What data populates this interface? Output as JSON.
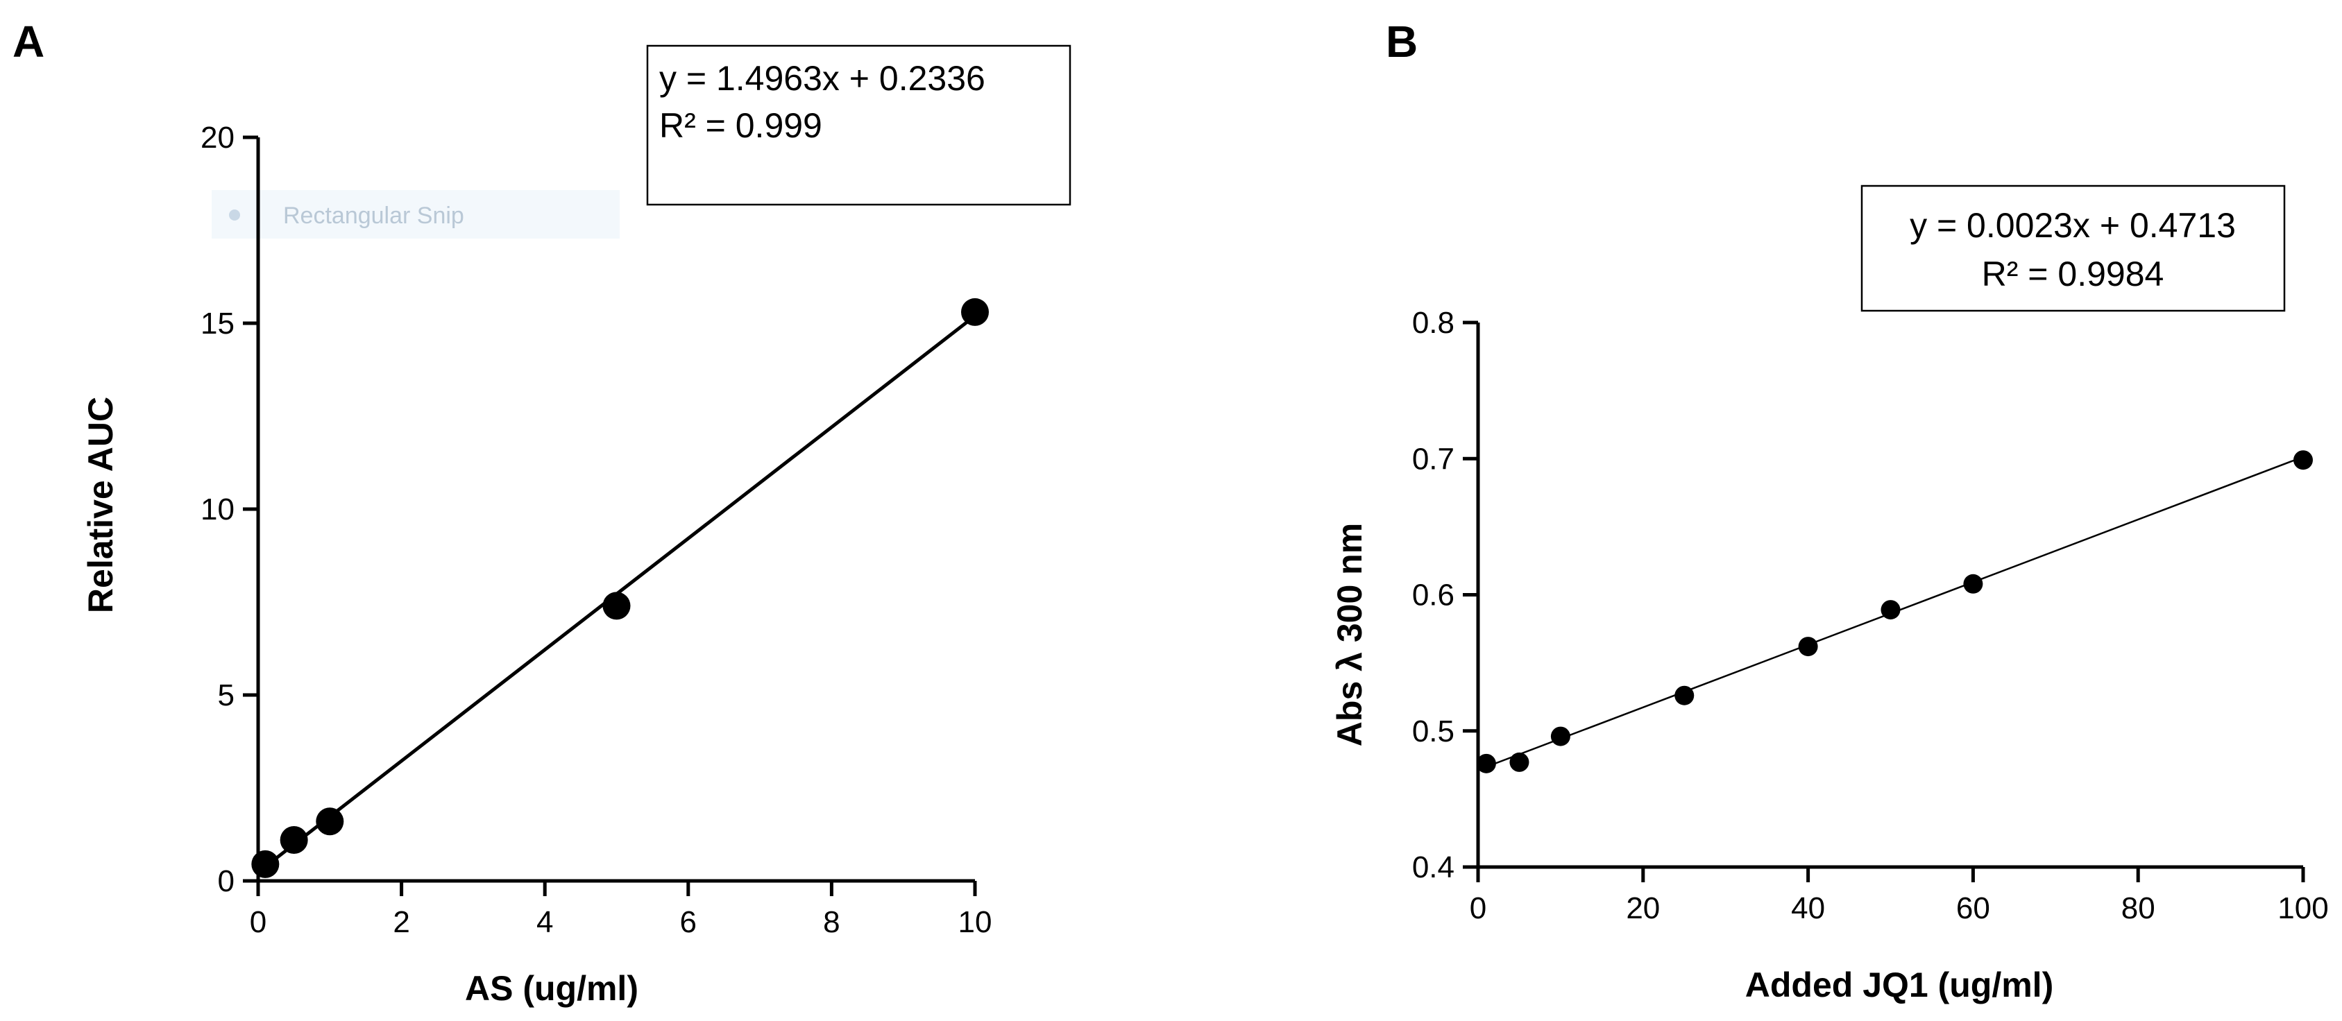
{
  "chart_data": [
    {
      "panel": "A",
      "type": "scatter",
      "xlabel": "AS (ug/ml)",
      "ylabel": "Relative AUC",
      "xlim": [
        0,
        10
      ],
      "ylim": [
        0,
        20
      ],
      "xticks": [
        0,
        2,
        4,
        6,
        8,
        10
      ],
      "yticks": [
        0,
        5,
        10,
        15,
        20
      ],
      "x": [
        0.1,
        0.5,
        1,
        5,
        10
      ],
      "y": [
        0.45,
        1.1,
        1.6,
        7.4,
        15.3
      ],
      "fit": {
        "slope": 1.4963,
        "intercept": 0.2336,
        "x_range": [
          0.1,
          10
        ]
      },
      "annotation": [
        "y = 1.4963x + 0.2336",
        "R² = 0.999"
      ],
      "overlay_text": "Rectangular Snip"
    },
    {
      "panel": "B",
      "type": "scatter",
      "xlabel": "Added JQ1 (ug/ml)",
      "ylabel": "Abs λ 300 nm",
      "xlim": [
        0,
        100
      ],
      "ylim": [
        0.4,
        0.8
      ],
      "xticks": [
        0,
        20,
        40,
        60,
        80,
        100
      ],
      "yticks": [
        0.4,
        0.5,
        0.6,
        0.7,
        0.8
      ],
      "x": [
        1,
        5,
        10,
        25,
        40,
        50,
        60,
        100
      ],
      "y": [
        0.476,
        0.477,
        0.496,
        0.526,
        0.562,
        0.589,
        0.608,
        0.699
      ],
      "fit": {
        "slope": 0.0023,
        "intercept": 0.4713,
        "x_range": [
          1,
          100
        ]
      },
      "annotation": [
        "y = 0.0023x + 0.4713",
        "R² = 0.9984"
      ]
    }
  ]
}
